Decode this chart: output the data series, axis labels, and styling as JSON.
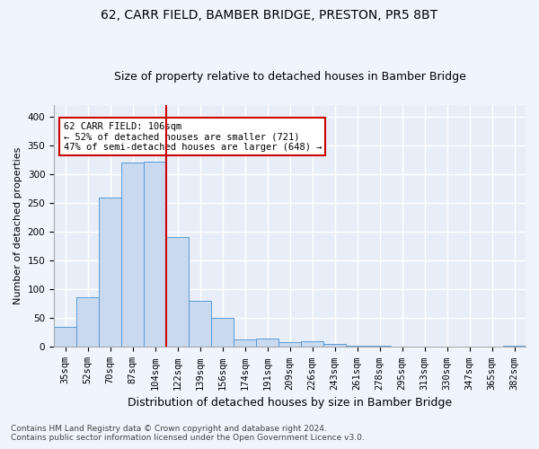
{
  "title1": "62, CARR FIELD, BAMBER BRIDGE, PRESTON, PR5 8BT",
  "title2": "Size of property relative to detached houses in Bamber Bridge",
  "xlabel": "Distribution of detached houses by size in Bamber Bridge",
  "ylabel": "Number of detached properties",
  "footnote1": "Contains HM Land Registry data © Crown copyright and database right 2024.",
  "footnote2": "Contains public sector information licensed under the Open Government Licence v3.0.",
  "categories": [
    "35sqm",
    "52sqm",
    "70sqm",
    "87sqm",
    "104sqm",
    "122sqm",
    "139sqm",
    "156sqm",
    "174sqm",
    "191sqm",
    "209sqm",
    "226sqm",
    "243sqm",
    "261sqm",
    "278sqm",
    "295sqm",
    "313sqm",
    "330sqm",
    "347sqm",
    "365sqm",
    "382sqm"
  ],
  "values": [
    35,
    86,
    260,
    320,
    321,
    190,
    80,
    51,
    13,
    14,
    8,
    10,
    5,
    3,
    2,
    1,
    1,
    1,
    0,
    0,
    3
  ],
  "bar_color": "#c8d9f0",
  "bar_edge_color": "#5b9bd5",
  "vline_color": "#cc0000",
  "vline_x_index": 4.5,
  "annotation_text": "62 CARR FIELD: 106sqm\n← 52% of detached houses are smaller (721)\n47% of semi-detached houses are larger (648) →",
  "annotation_box_color": "#ffffff",
  "annotation_box_edge": "#cc0000",
  "ylim": [
    0,
    420
  ],
  "yticks": [
    0,
    50,
    100,
    150,
    200,
    250,
    300,
    350,
    400
  ],
  "fig_background": "#f0f4fc",
  "ax_background": "#e8eef8",
  "grid_color": "#ffffff",
  "title1_fontsize": 10,
  "title2_fontsize": 9,
  "xlabel_fontsize": 9,
  "ylabel_fontsize": 8,
  "tick_fontsize": 7.5,
  "footnote_fontsize": 6.5
}
